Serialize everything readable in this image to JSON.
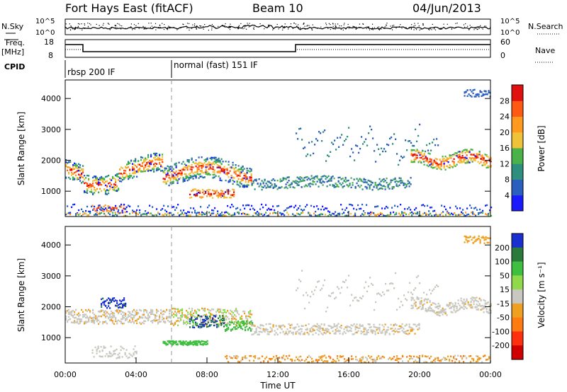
{
  "header": {
    "title": "Fort Hays East (fitACF)",
    "beam": "Beam 10",
    "date": "04/Jun/2013"
  },
  "left_labels": {
    "nsky": "N.Sky",
    "freq_line1": "Freq.",
    "freq_line2": "[MHz]",
    "cpid": "CPID"
  },
  "right_labels": {
    "nsearch": "N.Search",
    "nave": "Nave"
  },
  "noise_panel": {
    "left_ticks": [
      "10^5",
      "10^0"
    ],
    "right_ticks": [
      "10^5",
      "10^0"
    ]
  },
  "freq_panel": {
    "left_ticks": [
      "18",
      "8"
    ],
    "right_ticks": [
      "60",
      "0"
    ]
  },
  "cpid_panel": {
    "segments": [
      {
        "label": "rbsp 200 IF",
        "start_hour": 0
      },
      {
        "label": "normal (fast) 151 IF",
        "start_hour": 6
      }
    ]
  },
  "chart_data": [
    {
      "type": "heatmap",
      "name": "power",
      "ylabel": "Slant Range [km]",
      "yticks": [
        1000,
        2000,
        3000,
        4000
      ],
      "ylim": [
        180,
        4600
      ],
      "xlim": [
        0,
        24
      ],
      "colorbar": {
        "label": "Power [dB]",
        "ticks": [
          "4",
          "8",
          "12",
          "16",
          "20",
          "24",
          "28"
        ],
        "colors": [
          "#1a1aff",
          "#2a5fbf",
          "#2f8f7f",
          "#49b24a",
          "#f0c23a",
          "#ff9a1f",
          "#ff5a14",
          "#e01010"
        ]
      }
    },
    {
      "type": "heatmap",
      "name": "velocity",
      "ylabel": "Slant Range [km]",
      "yticks": [
        1000,
        2000,
        3000,
        4000
      ],
      "ylim": [
        180,
        4600
      ],
      "xlim": [
        0,
        24
      ],
      "colorbar": {
        "label": "Velocity [m s⁻¹]",
        "ticks": [
          "200",
          "100",
          "50",
          "15",
          "-15",
          "-50",
          "-100",
          "-200"
        ],
        "colors": [
          "#1a2fd0",
          "#2a7a3a",
          "#3fbf3f",
          "#8fd94a",
          "#c8c8c0",
          "#f0a020",
          "#ff7a10",
          "#ff3010",
          "#d00000"
        ]
      }
    }
  ],
  "x_axis": {
    "ticks": [
      "00:00",
      "04:00",
      "08:00",
      "12:00",
      "16:00",
      "20:00",
      "00:00"
    ],
    "label": "Time UT"
  }
}
